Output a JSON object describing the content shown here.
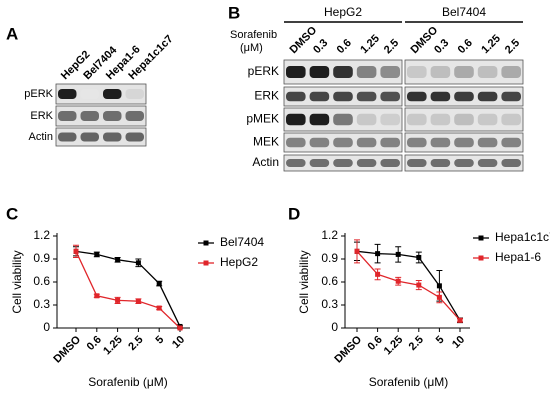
{
  "panel_a": {
    "letter": "A",
    "lanes": [
      "HepG2",
      "Bel7404",
      "Hepa1-6",
      "Hepa1c1c7"
    ],
    "rows": [
      "pERK",
      "ERK",
      "Actin"
    ]
  },
  "panel_b": {
    "letter": "B",
    "treatment": "Sorafenib",
    "unit": "(μM)",
    "groups": [
      {
        "name": "HepG2",
        "lanes": [
          "DMSO",
          "0.3",
          "0.6",
          "1.25",
          "2.5"
        ]
      },
      {
        "name": "Bel7404",
        "lanes": [
          "DMSO",
          "0.3",
          "0.6",
          "1.25",
          "2.5"
        ]
      }
    ],
    "rows": [
      "pERK",
      "ERK",
      "pMEK",
      "MEK",
      "Actin"
    ]
  },
  "chart_data": [
    {
      "type": "line",
      "letter": "C",
      "x_label": "Sorafenib (μM)",
      "y_label": "Cell viability",
      "categories": [
        "DMSO",
        "0.6",
        "1.25",
        "2.5",
        "5",
        "10"
      ],
      "ylim": [
        0,
        1.2
      ],
      "yticks": [
        0,
        0.3,
        0.6,
        0.9,
        1.2
      ],
      "series": [
        {
          "name": "Bel7404",
          "color": "#000000",
          "values": [
            1.0,
            0.96,
            0.89,
            0.85,
            0.58,
            0.02
          ],
          "errors": [
            0.06,
            0.03,
            0.03,
            0.05,
            0.03,
            0.01
          ]
        },
        {
          "name": "HepG2",
          "color": "#e0262b",
          "values": [
            1.0,
            0.42,
            0.36,
            0.35,
            0.26,
            0.0
          ],
          "errors": [
            0.08,
            0.02,
            0.04,
            0.03,
            0.02,
            0.01
          ]
        }
      ]
    },
    {
      "type": "line",
      "letter": "D",
      "x_label": "Sorafenib (μM)",
      "y_label": "Cell viability",
      "categories": [
        "DMSO",
        "0.6",
        "1.25",
        "2.5",
        "5",
        "10"
      ],
      "ylim": [
        0,
        1.2
      ],
      "yticks": [
        0,
        0.3,
        0.6,
        0.9,
        1.2
      ],
      "series": [
        {
          "name": "Hepa1c1c7",
          "color": "#000000",
          "values": [
            1.0,
            0.97,
            0.96,
            0.92,
            0.55,
            0.1
          ],
          "errors": [
            0.12,
            0.12,
            0.1,
            0.07,
            0.2,
            0.03
          ]
        },
        {
          "name": "Hepa1-6",
          "color": "#e0262b",
          "values": [
            1.0,
            0.7,
            0.61,
            0.56,
            0.4,
            0.1
          ],
          "errors": [
            0.15,
            0.07,
            0.05,
            0.06,
            0.07,
            0.02
          ]
        }
      ]
    }
  ]
}
